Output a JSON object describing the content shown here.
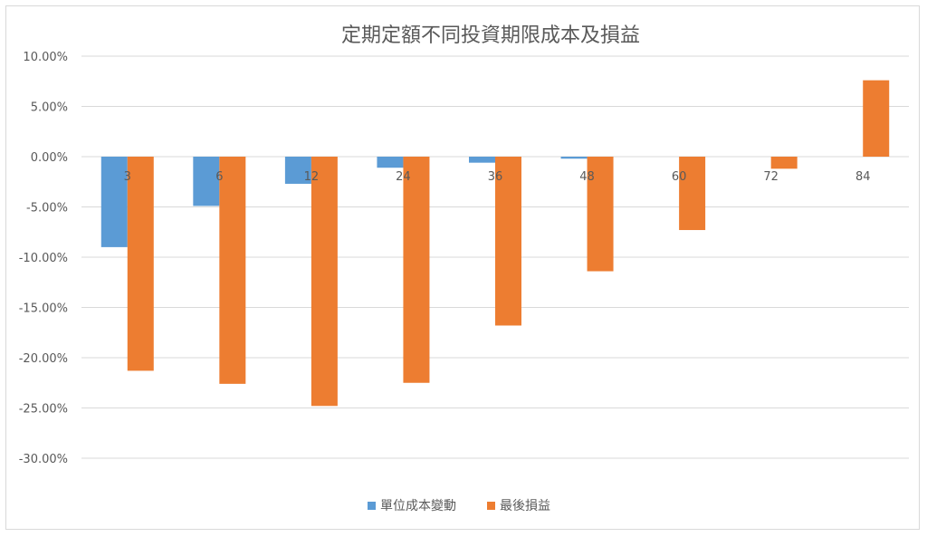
{
  "chart_data": {
    "type": "bar",
    "title": "定期定額不同投資期限成本及損益",
    "xlabel": "",
    "ylabel": "",
    "categories": [
      "3",
      "6",
      "12",
      "24",
      "36",
      "48",
      "60",
      "72",
      "84"
    ],
    "series": [
      {
        "name": "單位成本變動",
        "color": "#5b9bd5",
        "values": [
          -9.0,
          -4.9,
          -2.7,
          -1.1,
          -0.6,
          -0.2,
          0.0,
          0.0,
          0.0
        ]
      },
      {
        "name": "最後損益",
        "color": "#ed7d31",
        "values": [
          -21.3,
          -22.6,
          -24.8,
          -22.5,
          -16.8,
          -11.4,
          -7.3,
          -1.2,
          7.6
        ]
      }
    ],
    "ylim": [
      -30,
      10
    ],
    "yticks": [
      10,
      5,
      0,
      -5,
      -10,
      -15,
      -20,
      -25,
      -30
    ],
    "ytick_labels": [
      "10.00%",
      "5.00%",
      "0.00%",
      "-5.00%",
      "-10.00%",
      "-15.00%",
      "-20.00%",
      "-25.00%",
      "-30.00%"
    ],
    "grid": true,
    "legend_position": "bottom"
  }
}
